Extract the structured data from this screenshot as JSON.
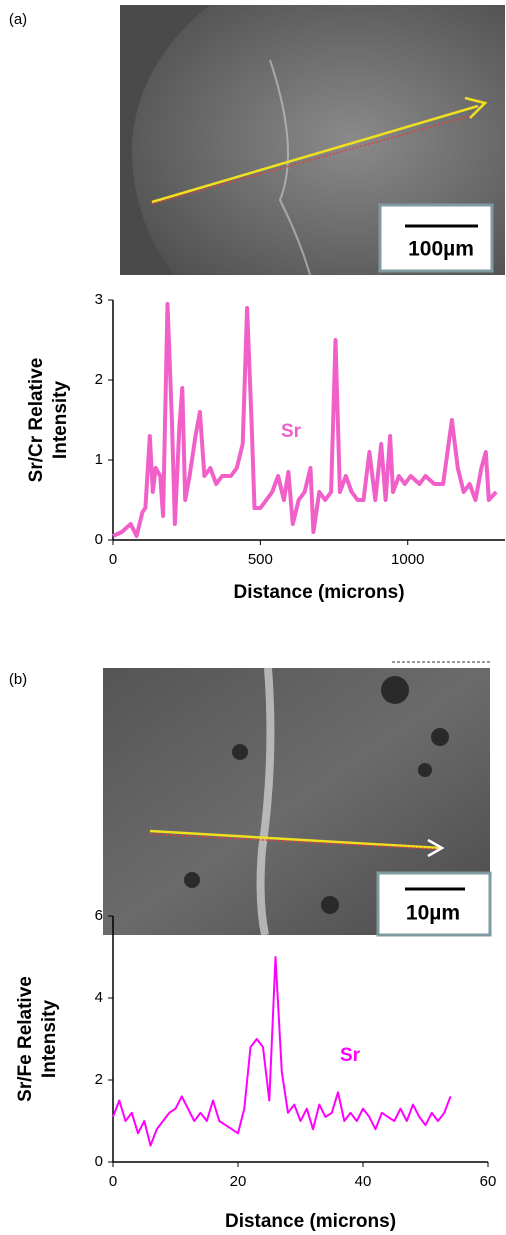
{
  "chart_data": [
    {
      "type": "line",
      "panel_label": "(a)",
      "scale_bar": "100µm",
      "xlabel": "Distance (microns)",
      "ylabel": [
        "Sr/Cr Relative",
        "Intensity"
      ],
      "xlim": [
        0,
        1330
      ],
      "xticks": [
        0,
        500,
        1000
      ],
      "ylim": [
        0,
        3
      ],
      "yticks": [
        0,
        1,
        2,
        3
      ],
      "x": [
        0,
        30,
        60,
        80,
        100,
        110,
        125,
        135,
        145,
        160,
        170,
        185,
        200,
        210,
        225,
        235,
        245,
        260,
        280,
        295,
        310,
        330,
        350,
        370,
        400,
        420,
        440,
        455,
        470,
        480,
        500,
        520,
        540,
        560,
        580,
        595,
        610,
        630,
        650,
        670,
        680,
        700,
        720,
        740,
        755,
        770,
        790,
        810,
        830,
        850,
        870,
        890,
        910,
        925,
        940,
        950,
        970,
        990,
        1010,
        1040,
        1060,
        1090,
        1120,
        1150,
        1170,
        1190,
        1210,
        1230,
        1250,
        1265,
        1275,
        1300
      ],
      "series": [
        {
          "name": "Sr",
          "color": "#f060c8",
          "values": [
            0.05,
            0.1,
            0.2,
            0.05,
            0.35,
            0.4,
            1.3,
            0.6,
            0.9,
            0.8,
            0.3,
            2.95,
            1.5,
            0.2,
            1.4,
            1.9,
            0.5,
            0.8,
            1.3,
            1.6,
            0.8,
            0.9,
            0.7,
            0.8,
            0.8,
            0.9,
            1.2,
            2.9,
            1.5,
            0.4,
            0.4,
            0.5,
            0.6,
            0.8,
            0.5,
            0.85,
            0.2,
            0.5,
            0.6,
            0.9,
            0.1,
            0.6,
            0.5,
            0.6,
            2.5,
            0.6,
            0.8,
            0.6,
            0.5,
            0.5,
            1.1,
            0.5,
            1.2,
            0.5,
            1.3,
            0.6,
            0.8,
            0.7,
            0.8,
            0.7,
            0.8,
            0.7,
            0.7,
            1.5,
            0.9,
            0.6,
            0.7,
            0.5,
            0.9,
            1.1,
            0.5,
            0.6
          ]
        }
      ]
    },
    {
      "type": "line",
      "panel_label": "(b)",
      "scale_bar": "10µm",
      "xlabel": "Distance (microns)",
      "ylabel": [
        "Sr/Fe Relative",
        "Intensity"
      ],
      "xlim": [
        0,
        60
      ],
      "xticks": [
        0,
        20,
        40,
        60
      ],
      "ylim": [
        0,
        6
      ],
      "yticks": [
        0,
        2,
        4,
        6
      ],
      "x": [
        0,
        1,
        2,
        3,
        4,
        5,
        6,
        7,
        8,
        9,
        10,
        11,
        12,
        13,
        14,
        15,
        16,
        17,
        18,
        19,
        20,
        21,
        22,
        23,
        24,
        25,
        26,
        27,
        28,
        29,
        30,
        31,
        32,
        33,
        34,
        35,
        36,
        37,
        38,
        39,
        40,
        41,
        42,
        43,
        44,
        45,
        46,
        47,
        48,
        49,
        50,
        51,
        52,
        53,
        54
      ],
      "series": [
        {
          "name": "Sr",
          "color": "#ff00ff",
          "values": [
            1.1,
            1.5,
            1.0,
            1.2,
            0.7,
            1.0,
            0.4,
            0.8,
            1.0,
            1.2,
            1.3,
            1.6,
            1.3,
            1.0,
            1.2,
            1.0,
            1.5,
            1.0,
            0.9,
            0.8,
            0.7,
            1.3,
            2.8,
            3.0,
            2.8,
            1.5,
            5.0,
            2.2,
            1.2,
            1.4,
            1.0,
            1.3,
            0.8,
            1.4,
            1.1,
            1.2,
            1.7,
            1.0,
            1.2,
            1.0,
            1.3,
            1.1,
            0.8,
            1.2,
            1.1,
            1.0,
            1.3,
            1.0,
            1.4,
            1.1,
            0.9,
            1.2,
            1.0,
            1.2,
            1.6
          ]
        }
      ]
    }
  ]
}
